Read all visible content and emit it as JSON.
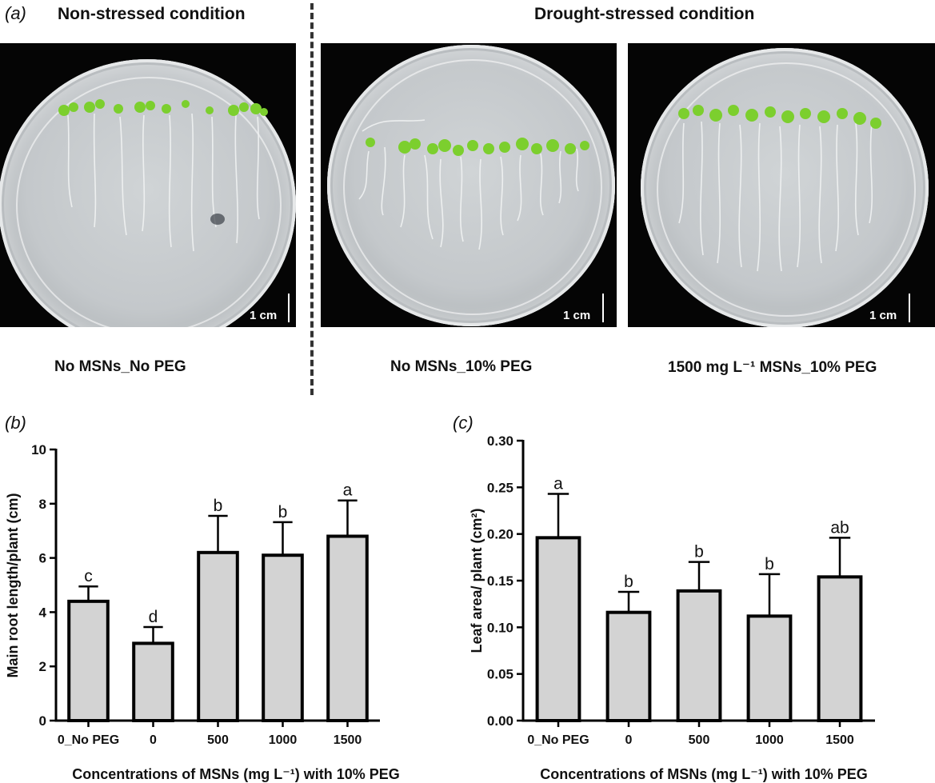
{
  "panel_a": {
    "letter": "(a)",
    "left_title": "Non-stressed condition",
    "right_title": "Drought-stressed condition",
    "photos": [
      {
        "scale": "1 cm",
        "caption": "No MSNs_No PEG"
      },
      {
        "scale": "1 cm",
        "caption": "No MSNs_10% PEG"
      },
      {
        "scale": "1 cm",
        "caption": "1500 mg L⁻¹ MSNs_10% PEG"
      }
    ],
    "colors": {
      "background": "#050505",
      "agar": "#c4c8cb",
      "seedling": "#7ccf2e",
      "root": "#f0f2f2"
    }
  },
  "chart_data": [
    {
      "type": "bar",
      "panel": "(b)",
      "categories": [
        "0_No PEG",
        "0",
        "500",
        "1000",
        "1500"
      ],
      "values": [
        4.4,
        2.85,
        6.2,
        6.1,
        6.8
      ],
      "errors": [
        0.55,
        0.6,
        1.35,
        1.22,
        1.32
      ],
      "letters": [
        "c",
        "d",
        "b",
        "b",
        "a"
      ],
      "ylabel": "Main root length/plant (cm)",
      "xlabel": "Concentrations of MSNs (mg L⁻¹) with 10% PEG",
      "ylim": [
        0,
        10
      ],
      "yticks": [
        "0",
        "2",
        "4",
        "6",
        "8",
        "10"
      ],
      "bar_color": "#d3d3d3",
      "grid": false
    },
    {
      "type": "bar",
      "panel": "(c)",
      "categories": [
        "0_No PEG",
        "0",
        "500",
        "1000",
        "1500"
      ],
      "values": [
        0.196,
        0.116,
        0.139,
        0.112,
        0.154
      ],
      "errors": [
        0.047,
        0.022,
        0.031,
        0.045,
        0.042
      ],
      "letters": [
        "a",
        "b",
        "b",
        "b",
        "ab"
      ],
      "ylabel": "Leaf area/ plant (cm²)",
      "xlabel": "Concentrations of MSNs (mg L⁻¹) with 10% PEG",
      "ylim": [
        0,
        0.3
      ],
      "yticks": [
        "0.00",
        "0.05",
        "0.10",
        "0.15",
        "0.20",
        "0.25",
        "0.30"
      ],
      "bar_color": "#d3d3d3",
      "grid": false
    }
  ]
}
